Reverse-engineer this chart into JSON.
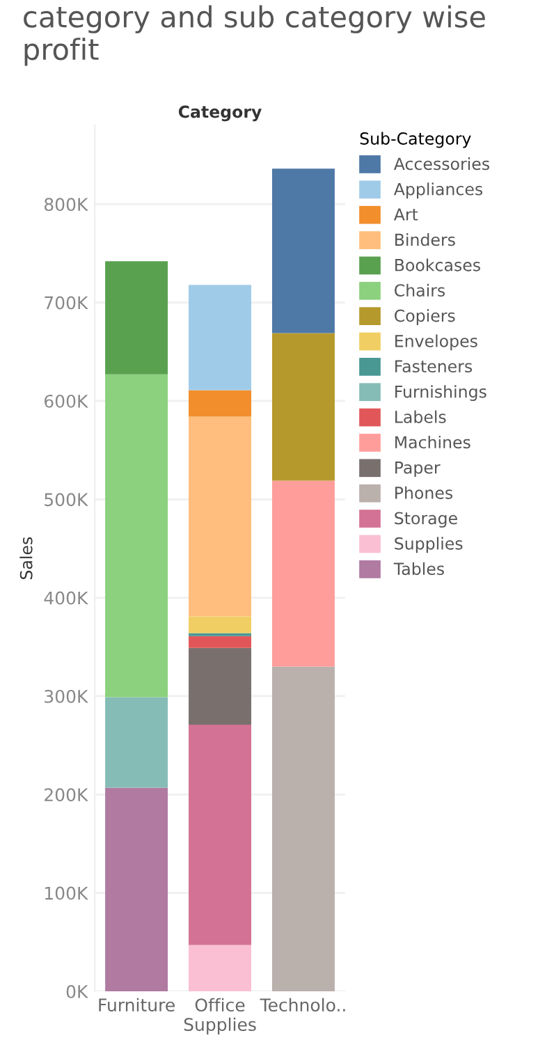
{
  "chart_data": {
    "type": "bar",
    "title": "category and sub category wise profit",
    "xlabel": "Category",
    "ylabel": "Sales",
    "legend_title": "Sub-Category",
    "categories": [
      "Furniture",
      "Office Supplies",
      "Technolo.."
    ],
    "stacked": true,
    "legend": "right",
    "grid": "y",
    "ylim": [
      0,
      880000
    ],
    "yticks": [
      {
        "value": 0,
        "label": "0K"
      },
      {
        "value": 100000,
        "label": "100K"
      },
      {
        "value": 200000,
        "label": "200K"
      },
      {
        "value": 300000,
        "label": "300K"
      },
      {
        "value": 400000,
        "label": "400K"
      },
      {
        "value": 500000,
        "label": "500K"
      },
      {
        "value": 600000,
        "label": "600K"
      },
      {
        "value": 700000,
        "label": "700K"
      },
      {
        "value": 800000,
        "label": "800K"
      }
    ],
    "series": [
      {
        "name": "Tables",
        "color": "#b07aa1",
        "values": [
          207000,
          null,
          null
        ]
      },
      {
        "name": "Supplies",
        "color": "#fabfd2",
        "values": [
          null,
          47000,
          null
        ]
      },
      {
        "name": "Storage",
        "color": "#d37295",
        "values": [
          null,
          224000,
          null
        ]
      },
      {
        "name": "Phones",
        "color": "#bab0ac",
        "values": [
          null,
          null,
          330000
        ]
      },
      {
        "name": "Paper",
        "color": "#79706e",
        "values": [
          null,
          78000,
          null
        ]
      },
      {
        "name": "Machines",
        "color": "#ff9d9a",
        "values": [
          null,
          null,
          189000
        ]
      },
      {
        "name": "Labels",
        "color": "#e15759",
        "values": [
          null,
          12000,
          null
        ]
      },
      {
        "name": "Furnishings",
        "color": "#86bcb6",
        "values": [
          92000,
          null,
          null
        ]
      },
      {
        "name": "Fasteners",
        "color": "#499894",
        "values": [
          null,
          3000,
          null
        ]
      },
      {
        "name": "Envelopes",
        "color": "#f1ce63",
        "values": [
          null,
          17000,
          null
        ]
      },
      {
        "name": "Copiers",
        "color": "#b6992d",
        "values": [
          null,
          null,
          150000
        ]
      },
      {
        "name": "Chairs",
        "color": "#8cd17d",
        "values": [
          328000,
          null,
          null
        ]
      },
      {
        "name": "Bookcases",
        "color": "#59a14f",
        "values": [
          115000,
          null,
          null
        ]
      },
      {
        "name": "Binders",
        "color": "#ffbe7d",
        "values": [
          null,
          203000,
          null
        ]
      },
      {
        "name": "Art",
        "color": "#f28e2b",
        "values": [
          null,
          27000,
          null
        ]
      },
      {
        "name": "Appliances",
        "color": "#a0cbe8",
        "values": [
          null,
          107000,
          null
        ]
      },
      {
        "name": "Accessories",
        "color": "#4e79a7",
        "values": [
          null,
          null,
          167000
        ]
      }
    ]
  }
}
